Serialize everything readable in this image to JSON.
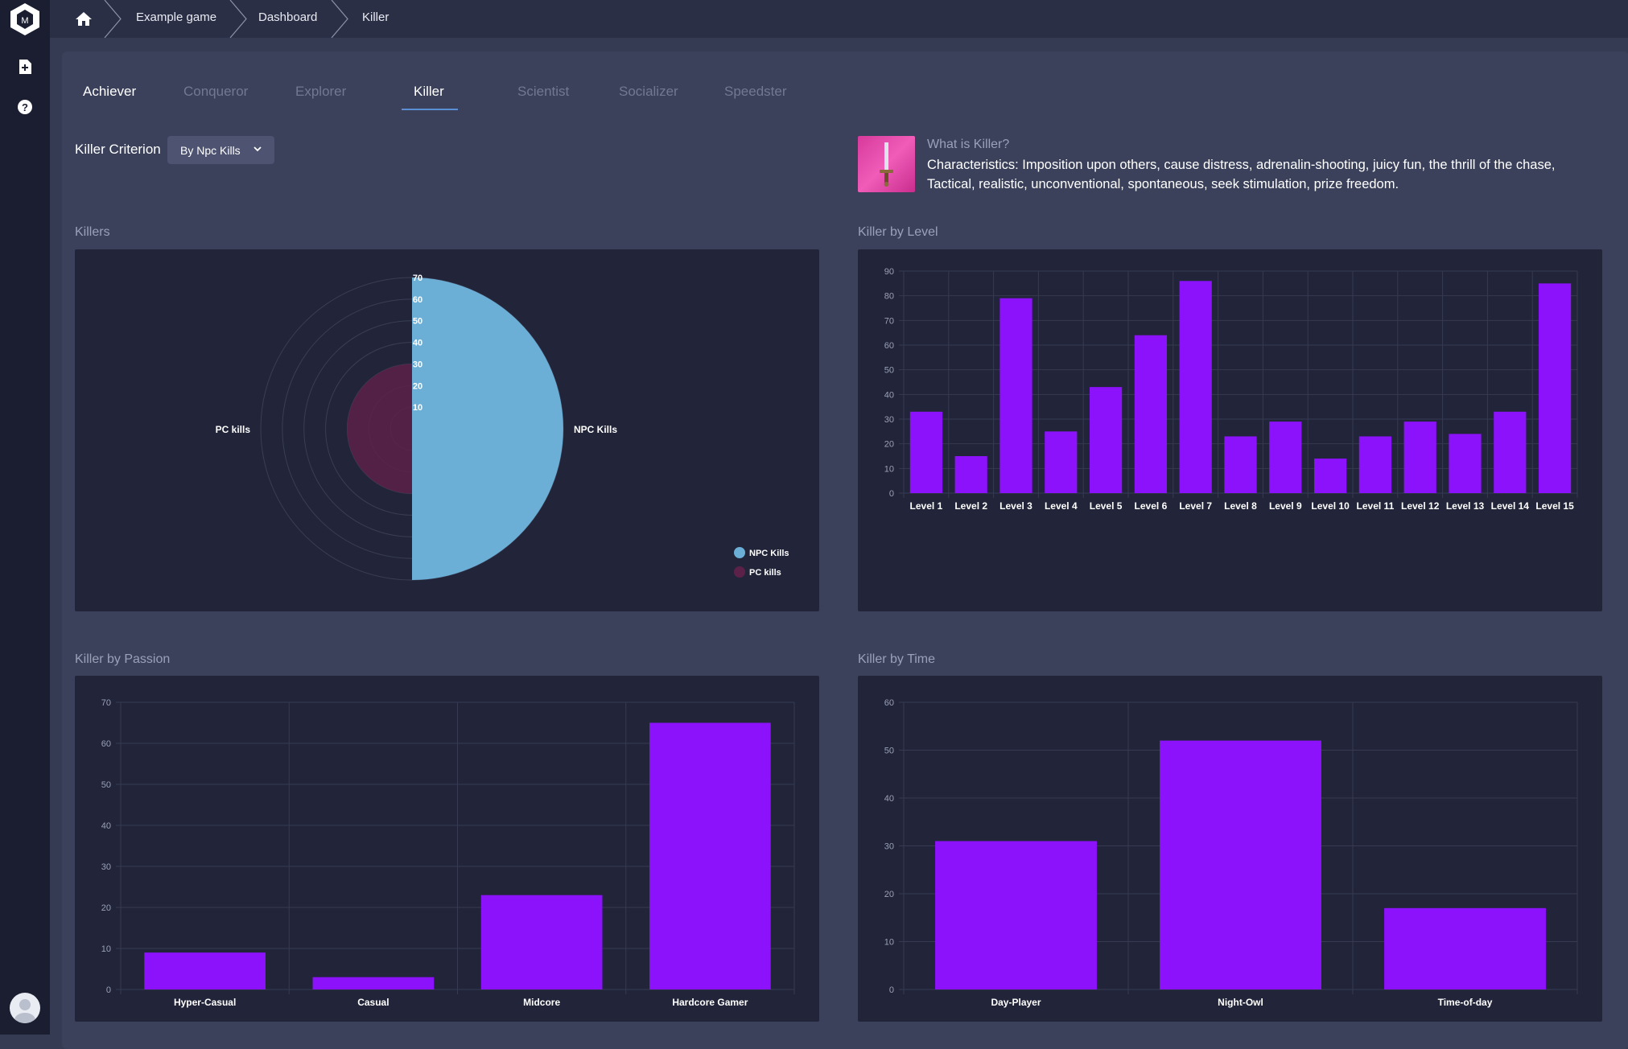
{
  "breadcrumb": {
    "items": [
      "Example game",
      "Dashboard",
      "Killer"
    ]
  },
  "tabs": [
    "Achiever",
    "Conqueror",
    "Explorer",
    "Killer",
    "Scientist",
    "Socializer",
    "Speedster"
  ],
  "active_tab": "Killer",
  "criterion": {
    "label": "Killer Criterion",
    "value": "By Npc Kills"
  },
  "info": {
    "question": "What is Killer?",
    "characteristics": "Characteristics: Imposition upon others, cause distress, adrenalin-shooting, juicy fun, the thrill of the chase, Tactical, realistic, unconventional, spontaneous, seek stimulation, prize freedom."
  },
  "sidebar": {
    "icons": [
      "app-logo",
      "add-document-icon",
      "help-icon",
      "user-avatar"
    ]
  },
  "colors": {
    "bar": "#8c12fc",
    "npc": "#6baed6",
    "pc": "#5c2148",
    "accent": "#5a8fd6"
  },
  "cards": {
    "killers": "Killers",
    "by_level": "Killer by Level",
    "by_passion": "Killer by Passion",
    "by_time": "Killer by Time"
  },
  "chart_data": [
    {
      "type": "polarArea",
      "title": "Killers",
      "categories": [
        "NPC Kills",
        "PC kills"
      ],
      "values": [
        70,
        30
      ],
      "ticks": [
        "10",
        "20",
        "30",
        "40",
        "50",
        "60",
        "70"
      ],
      "rmax": 70,
      "legend": "bottom-right"
    },
    {
      "type": "bar",
      "title": "Killer by Level",
      "categories": [
        "Level 1",
        "Level 2",
        "Level 3",
        "Level 4",
        "Level 5",
        "Level 6",
        "Level 7",
        "Level 8",
        "Level 9",
        "Level 10",
        "Level 11",
        "Level 12",
        "Level 13",
        "Level 14",
        "Level 15"
      ],
      "values": [
        33,
        15,
        79,
        25,
        43,
        64,
        86,
        23,
        29,
        14,
        23,
        29,
        24,
        33,
        85
      ],
      "ylim": [
        0,
        90
      ],
      "yticks": [
        "0",
        "10",
        "20",
        "30",
        "40",
        "50",
        "60",
        "70",
        "80",
        "90"
      ]
    },
    {
      "type": "bar",
      "title": "Killer by Passion",
      "categories": [
        "Hyper-Casual",
        "Casual",
        "Midcore",
        "Hardcore Gamer"
      ],
      "values": [
        9,
        3,
        23,
        65
      ],
      "ylim": [
        0,
        70
      ],
      "yticks": [
        "0",
        "10",
        "20",
        "30",
        "40",
        "50",
        "60",
        "70"
      ]
    },
    {
      "type": "bar",
      "title": "Killer by Time",
      "categories": [
        "Day-Player",
        "Night-Owl",
        "Time-of-day"
      ],
      "values": [
        31,
        52,
        17
      ],
      "ylim": [
        0,
        60
      ],
      "yticks": [
        "0",
        "10",
        "20",
        "30",
        "40",
        "50",
        "60"
      ]
    }
  ]
}
